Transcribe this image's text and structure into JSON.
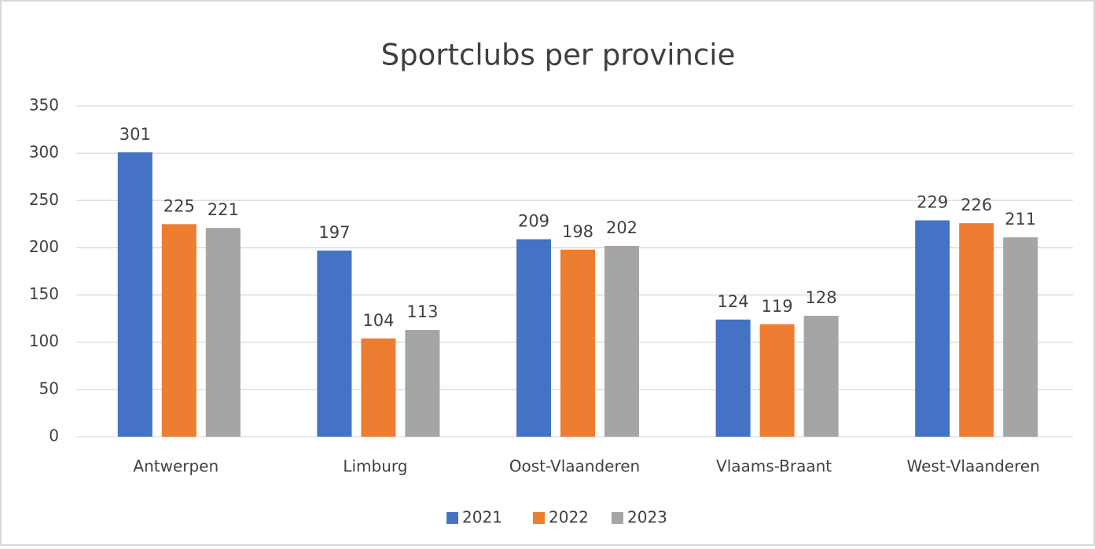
{
  "chart_data": {
    "type": "bar",
    "title": "Sportclubs per provincie",
    "categories": [
      "Antwerpen",
      "Limburg",
      "Oost-Vlaanderen",
      "Vlaams-Braant",
      "West-Vlaanderen"
    ],
    "series": [
      {
        "name": "2021",
        "color": "#4472c4",
        "values": [
          301,
          197,
          209,
          124,
          229
        ]
      },
      {
        "name": "2022",
        "color": "#ed7d31",
        "values": [
          225,
          104,
          198,
          119,
          226
        ]
      },
      {
        "name": "2023",
        "color": "#a5a5a5",
        "values": [
          221,
          113,
          202,
          128,
          211
        ]
      }
    ],
    "ylim": [
      0,
      350
    ],
    "yticks": [
      0,
      50,
      100,
      150,
      200,
      250,
      300,
      350
    ],
    "grid": true,
    "legend": "bottom"
  }
}
